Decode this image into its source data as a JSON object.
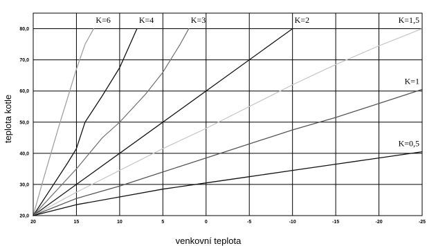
{
  "chart_data": {
    "type": "line",
    "title": "",
    "xlabel": "venkovní teplota",
    "ylabel": "teplota kotle",
    "xlim": [
      20,
      -25
    ],
    "ylim": [
      20,
      85
    ],
    "x_ticks": [
      20,
      15,
      10,
      5,
      0,
      -5,
      -10,
      -15,
      -20,
      -25
    ],
    "y_ticks": [
      20,
      30,
      40,
      50,
      60,
      70,
      80
    ],
    "x_tick_labels": [
      "20",
      "15",
      "10",
      "5",
      "0",
      "-5",
      "-10",
      "-15",
      "-20",
      "-25"
    ],
    "y_tick_labels": [
      "20,0",
      "30,0",
      "40,0",
      "50,0",
      "60,0",
      "70,0",
      "80,0"
    ],
    "grid": true,
    "series": [
      {
        "name": "K=6",
        "color": "#a0a0a0",
        "x": [
          20,
          19,
          18,
          17,
          16,
          15,
          14,
          13
        ],
        "y": [
          20,
          30,
          39.5,
          49,
          58,
          67,
          75,
          80
        ]
      },
      {
        "name": "K=4",
        "color": "#101010",
        "x": [
          20,
          18,
          16,
          15,
          14,
          12,
          10,
          8
        ],
        "y": [
          20,
          28.5,
          37,
          41.5,
          50,
          58.5,
          67.5,
          80
        ]
      },
      {
        "name": "K=3",
        "color": "#777777",
        "x": [
          20,
          17,
          15,
          12,
          10,
          7,
          5,
          3,
          2
        ],
        "y": [
          20,
          29,
          35,
          45,
          50,
          59,
          66,
          75,
          80
        ]
      },
      {
        "name": "K=2",
        "color": "#151515",
        "x": [
          20,
          15,
          10,
          5,
          0,
          -5,
          -10
        ],
        "y": [
          20,
          30,
          40,
          50,
          60,
          70,
          80
        ]
      },
      {
        "name": "K=1,5",
        "color": "#c8c8c8",
        "x": [
          20,
          15,
          10,
          5,
          0,
          -5,
          -10,
          -15,
          -20,
          -25
        ],
        "y": [
          20,
          27.5,
          34.5,
          41.5,
          48,
          55,
          62,
          68.5,
          74.5,
          80
        ]
      },
      {
        "name": "K=1",
        "color": "#555555",
        "x": [
          20,
          15,
          10,
          5,
          0,
          -5,
          -10,
          -15,
          -20,
          -25
        ],
        "y": [
          20,
          25.5,
          29.5,
          34,
          38.5,
          43,
          47.5,
          51.5,
          56,
          60.5
        ]
      },
      {
        "name": "K=0,5",
        "color": "#101010",
        "x": [
          20,
          15,
          10,
          5,
          0,
          -5,
          -10,
          -15,
          -20,
          -25
        ],
        "y": [
          20,
          23.5,
          26,
          28.5,
          30.5,
          32.5,
          34.5,
          36.5,
          38.5,
          40.5
        ]
      }
    ]
  }
}
